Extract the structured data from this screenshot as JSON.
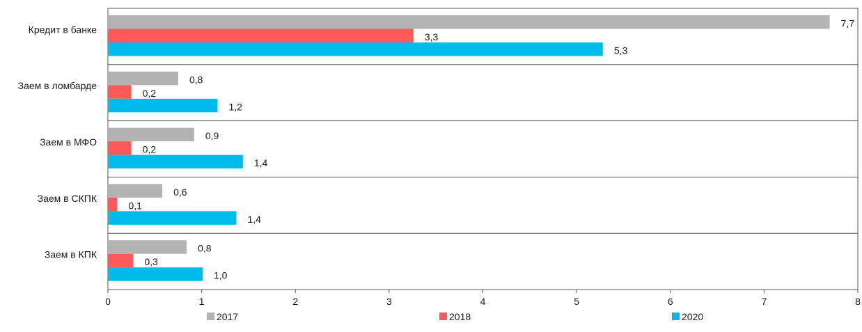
{
  "chart_data": {
    "type": "bar",
    "orientation": "horizontal",
    "categories": [
      "Кредит в банке",
      "Заем в ломбарде",
      "Заем в МФО",
      "Заем в СКПК",
      "Заем в КПК"
    ],
    "series": [
      {
        "name": "2017",
        "color": "#b3b3b3",
        "values": [
          7.7,
          0.75,
          0.92,
          0.58,
          0.84
        ],
        "labels": [
          "7,7",
          "0,8",
          "0,9",
          "0,6",
          "0,8"
        ]
      },
      {
        "name": "2018",
        "color": "#ff5a5a",
        "values": [
          3.26,
          0.25,
          0.25,
          0.1,
          0.27
        ],
        "labels": [
          "3,3",
          "0,2",
          "0,2",
          "0,1",
          "0,3"
        ]
      },
      {
        "name": "2020",
        "color": "#00bbea",
        "values": [
          5.28,
          1.17,
          1.44,
          1.37,
          1.01
        ],
        "labels": [
          "5,3",
          "1,2",
          "1,4",
          "1,4",
          "1,0"
        ]
      }
    ],
    "xlim": [
      0,
      8
    ],
    "xticks": [
      "0",
      "1",
      "2",
      "3",
      "4",
      "5",
      "6",
      "7",
      "8"
    ],
    "legend_position": "bottom",
    "grid": false
  }
}
